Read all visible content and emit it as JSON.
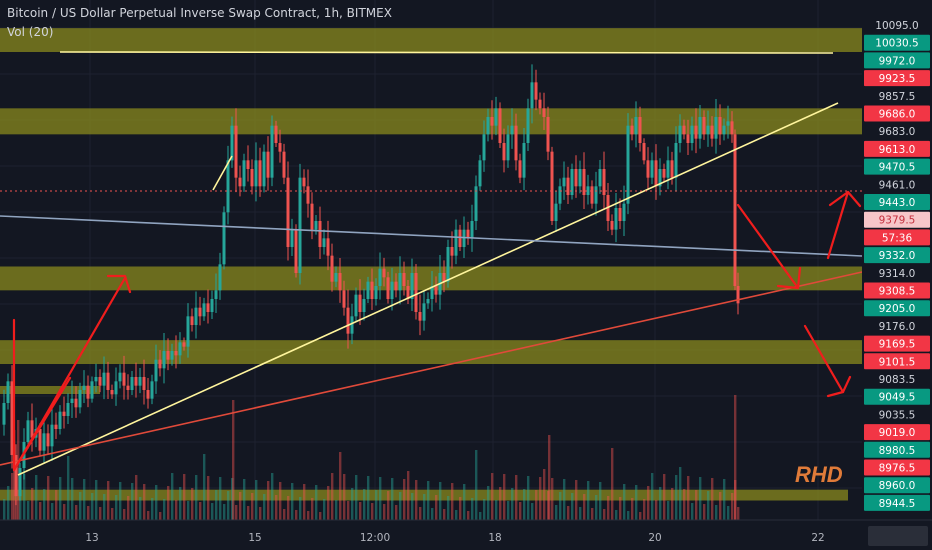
{
  "watermark": "RHD",
  "chart_data": {
    "type": "candlestick",
    "title": "Bitcoin / US Dollar Perpetual Inverse Swap Contract, 1h, BITMEX",
    "indicator": "Vol (20)",
    "ylim": [
      8930,
      10130
    ],
    "x_ticks": [
      "13",
      "15",
      "12:00",
      "18",
      "20",
      "22"
    ],
    "price_axis_labels": [
      {
        "value": "10095.0",
        "style": "plain"
      },
      {
        "value": "10030.5",
        "style": "green"
      },
      {
        "value": "9972.0",
        "style": "green"
      },
      {
        "value": "9923.5",
        "style": "red"
      },
      {
        "value": "9857.5",
        "style": "plain"
      },
      {
        "value": "9686.0",
        "style": "red"
      },
      {
        "value": "9683.0",
        "style": "plain"
      },
      {
        "value": "9613.0",
        "style": "red"
      },
      {
        "value": "9470.5",
        "style": "green"
      },
      {
        "value": "9461.0",
        "style": "plain"
      },
      {
        "value": "9443.0",
        "style": "green"
      },
      {
        "value": "9379.5",
        "style": "pink"
      },
      {
        "value": "57:36",
        "style": "red"
      },
      {
        "value": "9332.0",
        "style": "green"
      },
      {
        "value": "9314.0",
        "style": "plain"
      },
      {
        "value": "9308.5",
        "style": "red"
      },
      {
        "value": "9205.0",
        "style": "green"
      },
      {
        "value": "9176.0",
        "style": "plain"
      },
      {
        "value": "9169.5",
        "style": "red"
      },
      {
        "value": "9101.5",
        "style": "red"
      },
      {
        "value": "9083.5",
        "style": "plain"
      },
      {
        "value": "9049.5",
        "style": "green"
      },
      {
        "value": "9035.5",
        "style": "plain"
      },
      {
        "value": "9019.0",
        "style": "red"
      },
      {
        "value": "8980.5",
        "style": "green"
      },
      {
        "value": "8976.5",
        "style": "red"
      },
      {
        "value": "8960.0",
        "style": "green"
      },
      {
        "value": "8944.5",
        "style": "green"
      }
    ],
    "zones": [
      {
        "from": 10010,
        "to": 10065
      },
      {
        "from": 9820,
        "to": 9880
      },
      {
        "from": 9460,
        "to": 9515
      },
      {
        "from": 9290,
        "to": 9345
      },
      {
        "from": 8975,
        "to": 9000
      }
    ],
    "ohlc_close_path": [
      [
        0,
        9150
      ],
      [
        4,
        9200
      ],
      [
        8,
        9250
      ],
      [
        12,
        9080
      ],
      [
        16,
        8985
      ],
      [
        20,
        9050
      ],
      [
        24,
        9110
      ],
      [
        28,
        9160
      ],
      [
        32,
        9120
      ],
      [
        36,
        9140
      ],
      [
        40,
        9090
      ],
      [
        44,
        9130
      ],
      [
        48,
        9100
      ],
      [
        52,
        9150
      ],
      [
        56,
        9140
      ],
      [
        60,
        9180
      ],
      [
        64,
        9170
      ],
      [
        68,
        9200
      ],
      [
        72,
        9210
      ],
      [
        76,
        9190
      ],
      [
        80,
        9230
      ],
      [
        84,
        9240
      ],
      [
        88,
        9210
      ],
      [
        92,
        9250
      ],
      [
        96,
        9260
      ],
      [
        100,
        9240
      ],
      [
        104,
        9270
      ],
      [
        108,
        9230
      ],
      [
        112,
        9220
      ],
      [
        116,
        9250
      ],
      [
        120,
        9270
      ],
      [
        124,
        9240
      ],
      [
        128,
        9230
      ],
      [
        132,
        9260
      ],
      [
        136,
        9240
      ],
      [
        140,
        9260
      ],
      [
        144,
        9230
      ],
      [
        148,
        9210
      ],
      [
        152,
        9250
      ],
      [
        156,
        9300
      ],
      [
        160,
        9280
      ],
      [
        164,
        9320
      ],
      [
        168,
        9300
      ],
      [
        172,
        9320
      ],
      [
        176,
        9310
      ],
      [
        180,
        9340
      ],
      [
        184,
        9330
      ],
      [
        188,
        9400
      ],
      [
        192,
        9380
      ],
      [
        196,
        9420
      ],
      [
        200,
        9400
      ],
      [
        204,
        9430
      ],
      [
        208,
        9410
      ],
      [
        212,
        9440
      ],
      [
        216,
        9460
      ],
      [
        220,
        9520
      ],
      [
        224,
        9640
      ],
      [
        228,
        9760
      ],
      [
        232,
        9840
      ],
      [
        236,
        9720
      ],
      [
        240,
        9700
      ],
      [
        244,
        9760
      ],
      [
        248,
        9740
      ],
      [
        252,
        9700
      ],
      [
        256,
        9760
      ],
      [
        260,
        9700
      ],
      [
        264,
        9780
      ],
      [
        268,
        9720
      ],
      [
        272,
        9840
      ],
      [
        276,
        9800
      ],
      [
        280,
        9780
      ],
      [
        284,
        9720
      ],
      [
        288,
        9560
      ],
      [
        292,
        9600
      ],
      [
        296,
        9500
      ],
      [
        300,
        9720
      ],
      [
        304,
        9700
      ],
      [
        308,
        9660
      ],
      [
        312,
        9600
      ],
      [
        316,
        9620
      ],
      [
        320,
        9560
      ],
      [
        324,
        9580
      ],
      [
        328,
        9540
      ],
      [
        332,
        9480
      ],
      [
        336,
        9500
      ],
      [
        340,
        9460
      ],
      [
        344,
        9420
      ],
      [
        348,
        9360
      ],
      [
        352,
        9400
      ],
      [
        356,
        9450
      ],
      [
        360,
        9410
      ],
      [
        364,
        9440
      ],
      [
        368,
        9480
      ],
      [
        372,
        9440
      ],
      [
        376,
        9470
      ],
      [
        380,
        9510
      ],
      [
        384,
        9490
      ],
      [
        388,
        9440
      ],
      [
        392,
        9480
      ],
      [
        396,
        9460
      ],
      [
        400,
        9500
      ],
      [
        404,
        9470
      ],
      [
        408,
        9440
      ],
      [
        412,
        9500
      ],
      [
        416,
        9410
      ],
      [
        420,
        9390
      ],
      [
        424,
        9430
      ],
      [
        428,
        9440
      ],
      [
        432,
        9470
      ],
      [
        436,
        9450
      ],
      [
        440,
        9500
      ],
      [
        444,
        9480
      ],
      [
        448,
        9560
      ],
      [
        452,
        9540
      ],
      [
        456,
        9600
      ],
      [
        460,
        9560
      ],
      [
        464,
        9600
      ],
      [
        468,
        9580
      ],
      [
        472,
        9620
      ],
      [
        476,
        9700
      ],
      [
        480,
        9760
      ],
      [
        484,
        9820
      ],
      [
        488,
        9860
      ],
      [
        492,
        9840
      ],
      [
        496,
        9880
      ],
      [
        500,
        9800
      ],
      [
        504,
        9760
      ],
      [
        508,
        9820
      ],
      [
        512,
        9840
      ],
      [
        516,
        9760
      ],
      [
        520,
        9720
      ],
      [
        524,
        9800
      ],
      [
        528,
        9880
      ],
      [
        532,
        9940
      ],
      [
        536,
        9900
      ],
      [
        540,
        9880
      ],
      [
        544,
        9860
      ],
      [
        548,
        9780
      ],
      [
        552,
        9620
      ],
      [
        556,
        9660
      ],
      [
        560,
        9700
      ],
      [
        564,
        9720
      ],
      [
        568,
        9680
      ],
      [
        572,
        9740
      ],
      [
        576,
        9700
      ],
      [
        580,
        9740
      ],
      [
        584,
        9680
      ],
      [
        588,
        9700
      ],
      [
        592,
        9660
      ],
      [
        596,
        9700
      ],
      [
        600,
        9740
      ],
      [
        604,
        9680
      ],
      [
        608,
        9620
      ],
      [
        612,
        9600
      ],
      [
        616,
        9650
      ],
      [
        620,
        9620
      ],
      [
        624,
        9660
      ],
      [
        628,
        9840
      ],
      [
        632,
        9820
      ],
      [
        636,
        9860
      ],
      [
        640,
        9800
      ],
      [
        644,
        9760
      ],
      [
        648,
        9720
      ],
      [
        652,
        9760
      ],
      [
        656,
        9700
      ],
      [
        660,
        9740
      ],
      [
        664,
        9720
      ],
      [
        668,
        9760
      ],
      [
        672,
        9720
      ],
      [
        676,
        9800
      ],
      [
        680,
        9840
      ],
      [
        684,
        9820
      ],
      [
        688,
        9800
      ],
      [
        692,
        9840
      ],
      [
        696,
        9810
      ],
      [
        700,
        9860
      ],
      [
        704,
        9820
      ],
      [
        708,
        9840
      ],
      [
        712,
        9810
      ],
      [
        716,
        9860
      ],
      [
        720,
        9820
      ],
      [
        724,
        9840
      ],
      [
        728,
        9850
      ],
      [
        732,
        9820
      ],
      [
        735,
        9470
      ],
      [
        738,
        9430
      ]
    ]
  }
}
